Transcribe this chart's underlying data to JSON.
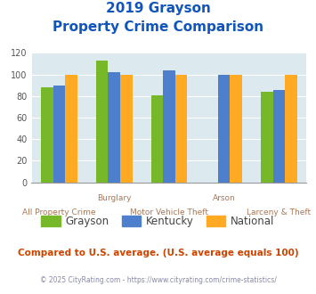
{
  "title_line1": "2019 Grayson",
  "title_line2": "Property Crime Comparison",
  "x_labels_top": [
    "",
    "Burglary",
    "",
    "Arson",
    ""
  ],
  "x_labels_bottom": [
    "All Property Crime",
    "",
    "Motor Vehicle Theft",
    "",
    "Larceny & Theft"
  ],
  "grayson": [
    88,
    113,
    81,
    0,
    84
  ],
  "kentucky": [
    90,
    102,
    104,
    100,
    86
  ],
  "national": [
    100,
    100,
    100,
    100,
    100
  ],
  "colors": {
    "grayson": "#76b82a",
    "kentucky": "#4d7fcc",
    "national": "#ffaa22"
  },
  "ylim": [
    0,
    120
  ],
  "yticks": [
    0,
    20,
    40,
    60,
    80,
    100,
    120
  ],
  "legend_labels": [
    "Grayson",
    "Kentucky",
    "National"
  ],
  "footer_text": "Compared to U.S. average. (U.S. average equals 100)",
  "copyright_text": "© 2025 CityRating.com - https://www.cityrating.com/crime-statistics/",
  "background_color": "#dce9ef",
  "title_color": "#1155bb",
  "xlabel_color": "#aa7755",
  "footer_color": "#cc4400",
  "copyright_color": "#8888aa",
  "bar_width": 0.22,
  "group_positions": [
    0,
    1,
    2,
    3,
    4
  ]
}
